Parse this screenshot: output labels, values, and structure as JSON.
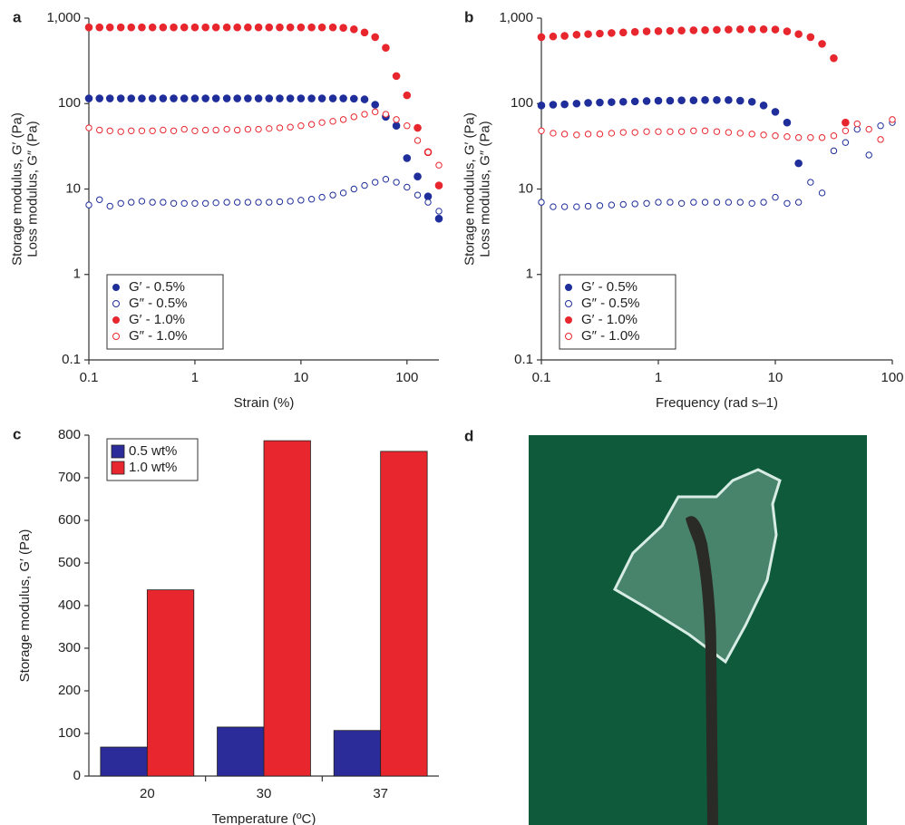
{
  "chart_data": [
    {
      "type": "scatter",
      "panel_label": "a",
      "xscale": "log",
      "yscale": "log",
      "xlabel": "Strain (%)",
      "ylabel": [
        "Storage modulus, G′ (Pa)",
        "Loss modulus, G″ (Pa)"
      ],
      "xlim": [
        0.1,
        200
      ],
      "ylim": [
        0.1,
        1000
      ],
      "xticks": [
        0.1,
        1,
        10,
        100
      ],
      "yticks": [
        0.1,
        1,
        10,
        100,
        {
          "value": 1000,
          "label": "1,000"
        }
      ],
      "legend": "lower left",
      "x": [
        0.1,
        0.126,
        0.158,
        0.2,
        0.251,
        0.316,
        0.398,
        0.501,
        0.631,
        0.794,
        1,
        1.26,
        1.58,
        2,
        2.51,
        3.16,
        3.98,
        5.01,
        6.31,
        7.94,
        10,
        12.6,
        15.8,
        20,
        25.1,
        31.6,
        39.8,
        50.1,
        63.1,
        79.4,
        100,
        126,
        158,
        200
      ],
      "series": [
        {
          "name": "G′ - 0.5%",
          "color": "#1f2e9a",
          "marker": "filled",
          "values": [
            115,
            115,
            115,
            115,
            115,
            115,
            115,
            115,
            115,
            115,
            115,
            115,
            115,
            115,
            115,
            115,
            115,
            115,
            115,
            115,
            115,
            115,
            115,
            115,
            115,
            114,
            112,
            97,
            70,
            55,
            23,
            14,
            8.2,
            4.5
          ]
        },
        {
          "name": "G″ - 0.5%",
          "color": "#1f2e9a",
          "marker": "open",
          "values": [
            6.5,
            7.5,
            6.3,
            6.8,
            7,
            7.2,
            7,
            7,
            6.8,
            6.8,
            6.8,
            6.8,
            6.9,
            7,
            7,
            7,
            7,
            7,
            7.1,
            7.2,
            7.4,
            7.6,
            8,
            8.5,
            9,
            10,
            11,
            12,
            13,
            12,
            10.5,
            8.5,
            7,
            5.5
          ]
        },
        {
          "name": "G′ - 1.0%",
          "color": "#e8262e",
          "marker": "filled",
          "values": [
            780,
            780,
            780,
            780,
            780,
            780,
            780,
            780,
            780,
            780,
            780,
            780,
            780,
            780,
            780,
            780,
            780,
            780,
            780,
            780,
            780,
            780,
            780,
            780,
            770,
            740,
            680,
            600,
            450,
            210,
            125,
            52,
            27,
            11
          ]
        },
        {
          "name": "G″ - 1.0%",
          "color": "#e8262e",
          "marker": "open",
          "values": [
            52,
            49,
            48,
            47,
            48,
            48,
            48,
            49,
            48,
            50,
            48,
            49,
            49,
            50,
            49,
            50,
            50,
            51,
            52,
            53,
            55,
            57,
            60,
            62,
            65,
            70,
            75,
            80,
            75,
            65,
            55,
            37,
            27,
            19
          ]
        }
      ]
    },
    {
      "type": "scatter",
      "panel_label": "b",
      "xscale": "log",
      "yscale": "log",
      "xlabel": "Frequency (rad s–1)",
      "ylabel": [
        "Storage modulus, G′ (Pa)",
        "Loss modulus, G″ (Pa)"
      ],
      "xlim": [
        0.1,
        100
      ],
      "ylim": [
        0.1,
        1000
      ],
      "xticks": [
        0.1,
        1,
        10,
        100
      ],
      "yticks": [
        0.1,
        1,
        10,
        100,
        {
          "value": 1000,
          "label": "1,000"
        }
      ],
      "legend": "lower left",
      "x": [
        0.1,
        0.126,
        0.158,
        0.2,
        0.251,
        0.316,
        0.398,
        0.501,
        0.631,
        0.794,
        1,
        1.26,
        1.58,
        2,
        2.51,
        3.16,
        3.98,
        5.01,
        6.31,
        7.94,
        10,
        12.6,
        15.8,
        20,
        25.1,
        31.6,
        39.8,
        50.1,
        63.1,
        79.4,
        100
      ],
      "series": [
        {
          "name": "G′ - 0.5%",
          "color": "#1f2e9a",
          "marker": "filled",
          "values": [
            95,
            97,
            98,
            100,
            102,
            103,
            104,
            105,
            106,
            107,
            108,
            108,
            109,
            109,
            110,
            110,
            110,
            108,
            105,
            95,
            80,
            60,
            20,
            null,
            null,
            null,
            null,
            null,
            null,
            null,
            null
          ]
        },
        {
          "name": "G″ - 0.5%",
          "color": "#1f2e9a",
          "marker": "open",
          "values": [
            7,
            6.2,
            6.2,
            6.2,
            6.3,
            6.4,
            6.5,
            6.6,
            6.7,
            6.8,
            7,
            7,
            6.8,
            7,
            7,
            7,
            7,
            7,
            6.8,
            7,
            8,
            6.8,
            7,
            12,
            9,
            28,
            35,
            50,
            25,
            55,
            60
          ]
        },
        {
          "name": "G′ - 1.0%",
          "color": "#e8262e",
          "marker": "filled",
          "values": [
            600,
            610,
            620,
            640,
            650,
            660,
            670,
            680,
            690,
            700,
            705,
            710,
            715,
            720,
            725,
            730,
            735,
            740,
            740,
            740,
            735,
            700,
            650,
            600,
            500,
            340,
            60,
            null,
            null,
            null,
            null
          ]
        },
        {
          "name": "G″ - 1.0%",
          "color": "#e8262e",
          "marker": "open",
          "values": [
            48,
            45,
            44,
            43,
            44,
            44,
            45,
            46,
            46,
            47,
            47,
            47,
            47,
            48,
            48,
            47,
            46,
            45,
            44,
            43,
            42,
            41,
            40,
            40,
            40,
            42,
            48,
            58,
            50,
            38,
            65
          ]
        }
      ]
    },
    {
      "type": "bar",
      "panel_label": "c",
      "xlabel": "Temperature (ºC)",
      "ylabel": [
        "Storage modulus, G′ (Pa)"
      ],
      "categories": [
        "20",
        "30",
        "37"
      ],
      "ylim": [
        0,
        800
      ],
      "yticks": [
        0,
        100,
        200,
        300,
        400,
        500,
        600,
        700,
        800
      ],
      "legend": "upper left",
      "series": [
        {
          "name": "0.5 wt%",
          "color": "#2b2b9a",
          "values": [
            68,
            115,
            107
          ]
        },
        {
          "name": "1.0 wt%",
          "color": "#e8262e",
          "values": [
            437,
            787,
            762
          ]
        }
      ]
    }
  ],
  "photo": {
    "panel_label": "d"
  }
}
